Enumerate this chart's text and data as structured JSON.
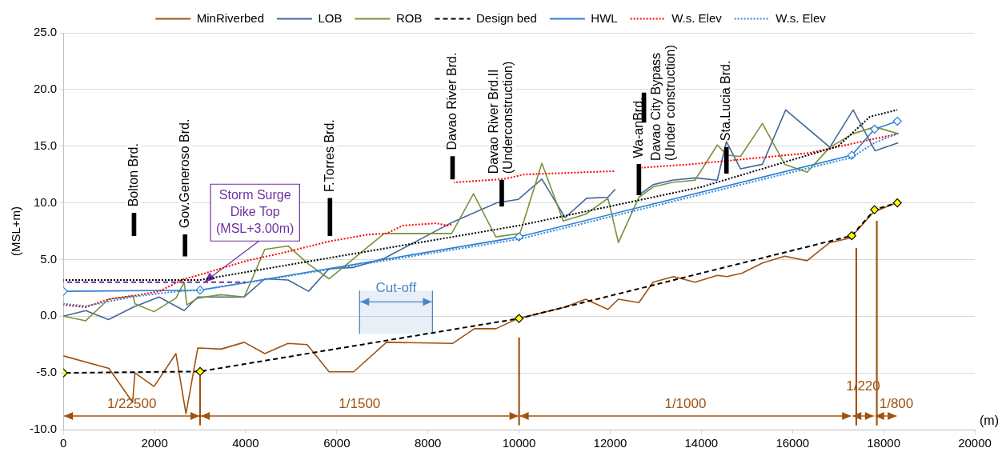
{
  "chart_data": {
    "type": "line",
    "xlabel": "(m)",
    "ylabel": "(MSL+m)",
    "xlim": [
      0,
      20000
    ],
    "xticks": [
      0,
      2000,
      4000,
      6000,
      8000,
      10000,
      12000,
      14000,
      16000,
      18000,
      20000
    ],
    "ylim": [
      -10,
      25
    ],
    "yticks": [
      {
        "value": -10,
        "label": "-10.0"
      },
      {
        "value": -5,
        "label": "-5.0"
      },
      {
        "value": 0,
        "label": "0.0"
      },
      {
        "value": 5,
        "label": "5.0"
      },
      {
        "value": 10,
        "label": "10.0"
      },
      {
        "value": 15,
        "label": "15.0"
      },
      {
        "value": 20,
        "label": "20.0"
      },
      {
        "value": 25,
        "label": "25.0"
      }
    ],
    "grid": "y",
    "legend": "top",
    "series": [
      {
        "name": "MinRiverbed",
        "color": "#a0520f",
        "line_style": "solid",
        "marker": "none",
        "x": [
          0,
          1000,
          1520,
          1570,
          1990,
          2470,
          2690,
          2950,
          3460,
          3970,
          4420,
          4930,
          5350,
          5830,
          6370,
          7090,
          8540,
          9020,
          9490,
          9980,
          11000,
          11460,
          11950,
          12180,
          12630,
          12940,
          13390,
          13860,
          14350,
          14560,
          14890,
          15340,
          15830,
          16320,
          16820,
          17270,
          17780,
          18280
        ],
        "values": [
          -3.5,
          -4.6,
          -7.6,
          -5.0,
          -6.2,
          -3.3,
          -8.6,
          -2.8,
          -2.9,
          -2.3,
          -3.3,
          -2.4,
          -2.5,
          -4.9,
          -4.9,
          -2.3,
          -2.4,
          -1.1,
          -1.1,
          -0.2,
          0.8,
          1.5,
          0.6,
          1.5,
          1.2,
          3.0,
          3.5,
          3.0,
          3.6,
          3.5,
          3.8,
          4.7,
          5.3,
          4.9,
          6.5,
          6.9,
          9.2,
          10.0
        ]
      },
      {
        "name": "LOB",
        "color": "#44689a",
        "line_style": "solid",
        "marker": "none",
        "x": [
          0,
          490,
          990,
          1530,
          2100,
          2650,
          2950,
          3970,
          4420,
          4930,
          5380,
          5830,
          6370,
          7040,
          8540,
          9510,
          9980,
          10500,
          11010,
          11480,
          11950,
          12110,
          12400,
          12630,
          12940,
          13360,
          13860,
          14350,
          14550,
          14860,
          15340,
          15850,
          16820,
          17330,
          17810,
          18320
        ],
        "values": [
          0.0,
          0.5,
          -0.3,
          0.8,
          1.7,
          0.5,
          1.7,
          1.7,
          3.3,
          3.2,
          2.2,
          4.2,
          4.3,
          5.1,
          8.3,
          10.0,
          10.3,
          12.1,
          8.7,
          10.4,
          10.5,
          11.2,
          null,
          10.7,
          11.6,
          12.0,
          12.2,
          12.0,
          15.4,
          13.0,
          13.4,
          18.2,
          14.9,
          18.2,
          14.6,
          15.3
        ]
      },
      {
        "name": "ROB",
        "color": "#77933c",
        "line_style": "solid",
        "marker": "none",
        "x": [
          0,
          490,
          990,
          1530,
          1570,
          1990,
          2470,
          2650,
          2710,
          2950,
          3460,
          3970,
          4420,
          4930,
          5380,
          5830,
          7040,
          8520,
          9000,
          9490,
          10020,
          10500,
          10970,
          11460,
          11950,
          12180,
          12630,
          12940,
          13360,
          13860,
          14350,
          14560,
          14860,
          15340,
          15830,
          16320,
          16820,
          17330,
          17810,
          18320
        ],
        "values": [
          0.0,
          -0.4,
          1.5,
          1.8,
          1.1,
          0.4,
          1.6,
          3.0,
          1.0,
          1.6,
          1.9,
          1.7,
          5.9,
          6.2,
          4.6,
          3.3,
          7.3,
          7.3,
          10.8,
          7.0,
          7.3,
          13.5,
          8.4,
          9.0,
          10.4,
          6.5,
          10.5,
          11.4,
          11.8,
          12.0,
          15.1,
          14.2,
          14.1,
          17.0,
          13.4,
          12.7,
          14.9,
          16.1,
          16.7,
          16.1
        ]
      },
      {
        "name": "Design bed",
        "color": "#000000",
        "line_style": "dashed",
        "marker": "diamond",
        "x": [
          0,
          3000,
          10000,
          17300,
          17800,
          18300
        ],
        "values": [
          -5.0,
          -4.87,
          -0.2,
          7.1,
          9.4,
          10.0
        ]
      },
      {
        "name": "HWL",
        "color": "#2e7fcf",
        "line_style": "solid",
        "marker": "diamond",
        "x": [
          0,
          3000,
          10000,
          17300,
          17800,
          18300
        ],
        "values": [
          2.2,
          2.3,
          7.0,
          14.2,
          16.5,
          17.2
        ]
      },
      {
        "name": "W.s. Elev",
        "color": "#ff0000",
        "line_style": "dotted",
        "marker": "none",
        "x": [
          0,
          490,
          990,
          1530,
          2110,
          2650,
          2950,
          4030,
          4930,
          5830,
          6680,
          7090,
          7450,
          8180,
          8430,
          8520,
          8545,
          8570,
          9660,
          10110,
          12090,
          12400,
          12690,
          13750,
          14800,
          16370,
          18320
        ],
        "values": [
          1.0,
          0.8,
          1.5,
          1.8,
          2.2,
          3.3,
          3.6,
          4.9,
          5.7,
          6.6,
          7.2,
          7.3,
          8.0,
          8.2,
          8.0,
          8.1,
          null,
          11.8,
          12.1,
          12.5,
          12.8,
          null,
          13.1,
          13.4,
          13.8,
          14.4,
          16.1
        ]
      },
      {
        "name": "W.s. Elev",
        "color": "#2e8bd6",
        "line_style": "dotted",
        "marker": "none",
        "x": [
          0,
          500,
          1000,
          1500,
          2500,
          3000,
          10000,
          17300,
          17800,
          18300
        ],
        "values": [
          1.1,
          0.9,
          1.3,
          1.7,
          2.2,
          2.3,
          6.8,
          14.0,
          15.3,
          16.1
        ]
      },
      {
        "color": "#000000",
        "line_style": "dotted",
        "marker": "none",
        "x": [
          0,
          3000,
          10000,
          14000,
          17000,
          17700,
          18300
        ],
        "values": [
          3.2,
          3.2,
          8.0,
          11.4,
          15.0,
          17.6,
          18.2
        ]
      },
      {
        "color": "#7030a0",
        "line_style": "dashed",
        "marker": "none",
        "x": [
          0,
          4000
        ],
        "values": [
          3.0,
          3.0
        ]
      },
      {
        "type": "bar",
        "color": "#000000",
        "x": [
          1550,
          2670,
          5850,
          8540,
          9620,
          12630,
          12740,
          14550
        ],
        "base": [
          7.1,
          5.3,
          7.1,
          12.1,
          9.7,
          10.7,
          17.1,
          12.6
        ],
        "values": [
          2.0,
          1.9,
          3.3,
          2.0,
          2.3,
          2.7,
          2.6,
          2.3
        ]
      },
      {
        "type": "bar",
        "color": "#a0520f",
        "x": [
          3000,
          10000,
          17400,
          17850
        ],
        "base": [
          -9.6,
          -9.6,
          -9.6,
          -9.6
        ],
        "values": [
          4.3,
          7.7,
          15.6,
          18.0
        ]
      }
    ],
    "annotations": [
      {
        "text": "Storm Surge\nDike Top\n(MSL+3.00m)",
        "x": 3100,
        "y": 3.0
      },
      "1/22500",
      "1/1500",
      "1/1000",
      "1/220",
      "1/800",
      {
        "text": "Bolton Brd.",
        "x": 1550,
        "y": 9.1
      },
      {
        "text": "Gov.Generoso Brd.",
        "x": 2670,
        "y": 7.2
      },
      {
        "text": "F.Torres Brd.",
        "x": 5850,
        "y": 10.4
      },
      {
        "text": "Davao River Brd.",
        "x": 8540,
        "y": 14.1
      },
      {
        "text": "Davao River Brd.II\n(Underconstruction)",
        "x": 9620,
        "y": 12.0
      },
      {
        "text": "Wa-anBrd.",
        "x": 12630,
        "y": 13.4
      },
      {
        "text": "Davao City Bypass\n(Under construction)",
        "x": 12740,
        "y": 19.7
      },
      {
        "text": "Sta.Lucia Brd.",
        "x": 14550,
        "y": 14.9
      }
    ],
    "bands": [
      {
        "axis": "x",
        "from": 6500,
        "to": 8100,
        "label": "Cut-off",
        "color": "#4a86c5"
      }
    ]
  }
}
